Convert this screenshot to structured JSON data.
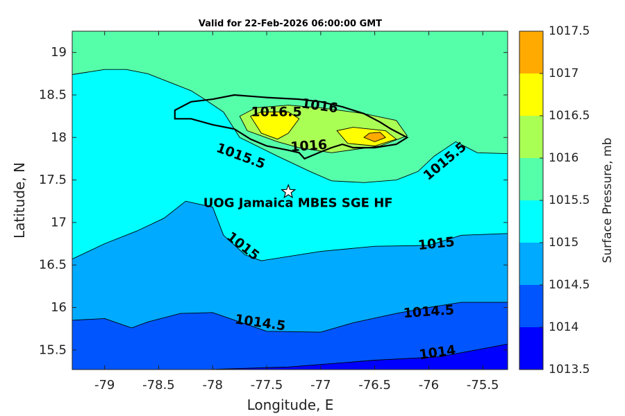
{
  "chart_data": {
    "type": "contour_map",
    "title": "Valid for 22-Feb-2026 06:00:00 GMT",
    "xlabel": "Longitude, E",
    "ylabel": "Latitude, N",
    "xlim": [
      -79.3,
      -75.27
    ],
    "ylim": [
      15.27,
      19.25
    ],
    "xticks": [
      -79,
      -78.5,
      -78,
      -77.5,
      -77,
      -76.5,
      -76,
      -75.5
    ],
    "xtick_labels": [
      "-79",
      "-78.5",
      "-78",
      "-77.5",
      "-77",
      "-76.5",
      "-76",
      "-75.5"
    ],
    "yticks": [
      15.5,
      16,
      16.5,
      17,
      17.5,
      18,
      18.5,
      19
    ],
    "ytick_labels": [
      "15.5",
      "16",
      "16.5",
      "17",
      "17.5",
      "18",
      "18.5",
      "19"
    ],
    "colorbar": {
      "label": "Surface Pressure, mb",
      "levels": [
        1013.5,
        1014,
        1014.5,
        1015,
        1015.5,
        1016,
        1016.5,
        1017,
        1017.5
      ],
      "level_labels": [
        "1013.5",
        "1014",
        "1014.5",
        "1015",
        "1015.5",
        "1016",
        "1016.5",
        "1017",
        "1017.5"
      ],
      "colors": [
        "#0000ff",
        "#0055ff",
        "#00aaff",
        "#00ffff",
        "#55ffaa",
        "#aaff55",
        "#ffff00",
        "#ffaa00",
        "#ff5500"
      ]
    },
    "contours": [
      {
        "level": 1014,
        "points": [
          [
            -79.3,
            15.22
          ],
          [
            -77.3,
            15.3
          ],
          [
            -76.5,
            15.38
          ],
          [
            -75.9,
            15.42
          ],
          [
            -75.27,
            15.57
          ]
        ]
      },
      {
        "level": 1014.5,
        "points": [
          [
            -79.3,
            15.85
          ],
          [
            -79.0,
            15.87
          ],
          [
            -78.75,
            15.76
          ],
          [
            -78.6,
            15.83
          ],
          [
            -78.3,
            15.93
          ],
          [
            -78.0,
            15.94
          ],
          [
            -77.5,
            15.72
          ],
          [
            -77.0,
            15.71
          ],
          [
            -76.7,
            15.82
          ],
          [
            -76.3,
            15.93
          ],
          [
            -76.0,
            16.0
          ],
          [
            -75.7,
            16.06
          ],
          [
            -75.27,
            16.06
          ]
        ]
      },
      {
        "level": 1015,
        "points": [
          [
            -79.3,
            16.57
          ],
          [
            -79.0,
            16.75
          ],
          [
            -78.7,
            16.9
          ],
          [
            -78.45,
            17.05
          ],
          [
            -78.25,
            17.25
          ],
          [
            -78.0,
            17.18
          ],
          [
            -77.9,
            16.85
          ],
          [
            -77.7,
            16.62
          ],
          [
            -77.55,
            16.55
          ],
          [
            -77.3,
            16.6
          ],
          [
            -77.0,
            16.66
          ],
          [
            -76.5,
            16.72
          ],
          [
            -76.0,
            16.73
          ],
          [
            -75.7,
            16.85
          ],
          [
            -75.27,
            16.87
          ]
        ]
      },
      {
        "level": 1015.5,
        "points": [
          [
            -79.3,
            18.74
          ],
          [
            -79.0,
            18.8
          ],
          [
            -78.8,
            18.8
          ],
          [
            -78.6,
            18.75
          ],
          [
            -78.4,
            18.65
          ],
          [
            -78.2,
            18.55
          ],
          [
            -78.1,
            18.47
          ],
          [
            -77.9,
            18.3
          ],
          [
            -77.75,
            18.0
          ],
          [
            -77.4,
            17.78
          ],
          [
            -77.1,
            17.6
          ],
          [
            -76.9,
            17.49
          ],
          [
            -76.6,
            17.47
          ],
          [
            -76.3,
            17.5
          ],
          [
            -76.1,
            17.6
          ],
          [
            -75.95,
            17.78
          ],
          [
            -75.75,
            17.95
          ],
          [
            -75.55,
            17.82
          ],
          [
            -75.27,
            17.81
          ]
        ]
      },
      {
        "level": 1016,
        "points": [
          [
            -77.75,
            18.25
          ],
          [
            -77.6,
            18.35
          ],
          [
            -77.3,
            18.38
          ],
          [
            -77.0,
            18.35
          ],
          [
            -76.6,
            18.28
          ],
          [
            -76.3,
            18.2
          ],
          [
            -76.2,
            18.02
          ],
          [
            -76.45,
            17.9
          ],
          [
            -76.9,
            17.82
          ],
          [
            -77.2,
            17.88
          ],
          [
            -77.4,
            17.95
          ],
          [
            -77.68,
            18.08
          ],
          [
            -77.75,
            18.25
          ]
        ]
      },
      {
        "level": 1016.5,
        "points": [
          [
            -77.65,
            18.25
          ],
          [
            -77.55,
            18.3
          ],
          [
            -77.3,
            18.3
          ],
          [
            -77.2,
            18.22
          ],
          [
            -77.3,
            18.05
          ],
          [
            -77.4,
            17.98
          ],
          [
            -77.55,
            18.05
          ],
          [
            -77.65,
            18.25
          ]
        ]
      },
      {
        "level": 1016.5,
        "points": [
          [
            -76.85,
            18.08
          ],
          [
            -76.7,
            18.12
          ],
          [
            -76.4,
            18.08
          ],
          [
            -76.3,
            17.98
          ],
          [
            -76.5,
            17.9
          ],
          [
            -76.75,
            17.93
          ],
          [
            -76.85,
            18.08
          ]
        ]
      },
      {
        "level": 1017,
        "points": [
          [
            -76.55,
            18.05
          ],
          [
            -76.45,
            18.06
          ],
          [
            -76.4,
            18.0
          ],
          [
            -76.5,
            17.95
          ],
          [
            -76.6,
            18.0
          ],
          [
            -76.55,
            18.05
          ]
        ]
      }
    ],
    "contour_labels": [
      {
        "text": "1014",
        "lon": -75.92,
        "lat": 15.47,
        "angle": -8
      },
      {
        "text": "1014.5",
        "lon": -77.56,
        "lat": 15.82,
        "angle": 8
      },
      {
        "text": "1014.5",
        "lon": -76.0,
        "lat": 15.95,
        "angle": -4
      },
      {
        "text": "1015",
        "lon": -77.72,
        "lat": 16.72,
        "angle": 38
      },
      {
        "text": "1015",
        "lon": -75.93,
        "lat": 16.75,
        "angle": -6
      },
      {
        "text": "1015.5",
        "lon": -77.74,
        "lat": 17.78,
        "angle": 20
      },
      {
        "text": "1015.5",
        "lon": -75.85,
        "lat": 17.72,
        "angle": -40
      },
      {
        "text": "1016",
        "lon": -77.01,
        "lat": 18.37,
        "angle": 8
      },
      {
        "text": "1016.5",
        "lon": -77.41,
        "lat": 18.3,
        "angle": 0
      },
      {
        "text": "1016",
        "lon": -77.11,
        "lat": 17.9,
        "angle": -4
      }
    ],
    "station": {
      "name": "UOG Jamaica MBES SGE HF",
      "lon": -77.3,
      "lat": 17.36
    },
    "coastline": [
      [
        -78.35,
        18.32
      ],
      [
        -78.2,
        18.42
      ],
      [
        -78.0,
        18.45
      ],
      [
        -77.8,
        18.5
      ],
      [
        -77.5,
        18.47
      ],
      [
        -77.2,
        18.45
      ],
      [
        -77.0,
        18.42
      ],
      [
        -76.8,
        18.36
      ],
      [
        -76.6,
        18.28
      ],
      [
        -76.45,
        18.18
      ],
      [
        -76.35,
        18.1
      ],
      [
        -76.2,
        18.0
      ],
      [
        -76.3,
        17.92
      ],
      [
        -76.5,
        17.88
      ],
      [
        -76.7,
        17.88
      ],
      [
        -76.8,
        17.92
      ],
      [
        -76.9,
        17.88
      ],
      [
        -77.0,
        17.83
      ],
      [
        -77.15,
        17.75
      ],
      [
        -77.2,
        17.82
      ],
      [
        -77.3,
        17.85
      ],
      [
        -77.5,
        17.9
      ],
      [
        -77.65,
        17.98
      ],
      [
        -77.8,
        18.1
      ],
      [
        -78.0,
        18.15
      ],
      [
        -78.2,
        18.22
      ],
      [
        -78.35,
        18.22
      ],
      [
        -78.35,
        18.32
      ]
    ]
  }
}
